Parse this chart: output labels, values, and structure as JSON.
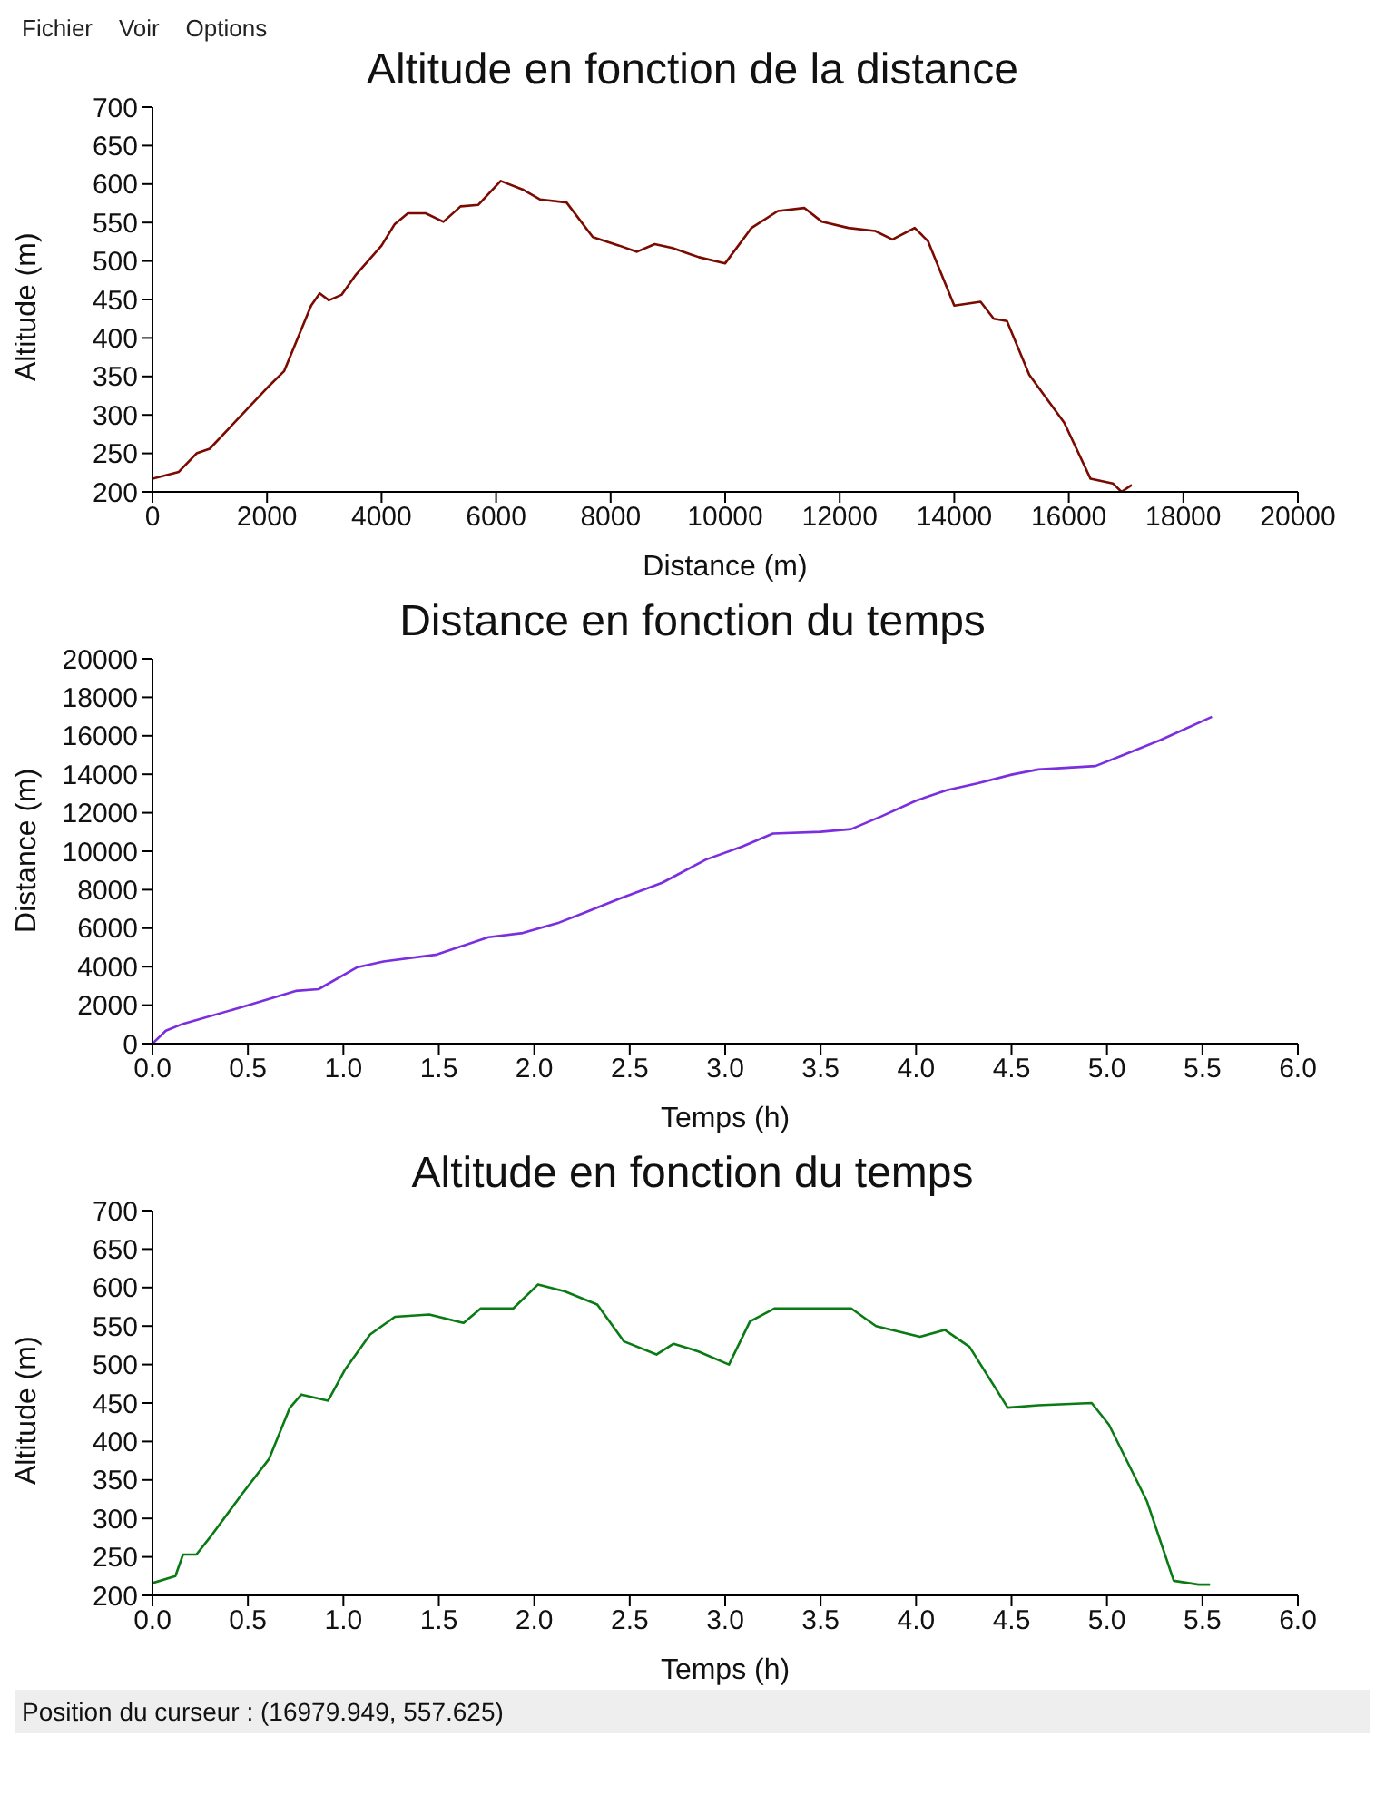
{
  "chart_data": [
    {
      "type": "line",
      "title": "Altitude en fonction de la distance",
      "xlabel": "Distance (m)",
      "ylabel": "Altitude (m)",
      "annotations": [
        "Fichier    Voir    Options"
      ],
      "color": "#7b0a00",
      "xlim": [
        0,
        20000
      ],
      "ylim": [
        200,
        700
      ],
      "xticks": [
        0,
        2000,
        4000,
        6000,
        8000,
        10000,
        12000,
        14000,
        16000,
        18000,
        20000
      ],
      "yticks": [
        200,
        250,
        300,
        350,
        400,
        450,
        500,
        550,
        600,
        650,
        700
      ],
      "x": [
        0,
        460,
        770,
        1000,
        2000,
        2300,
        2770,
        2920,
        3080,
        3300,
        3540,
        4000,
        4230,
        4460,
        4770,
        5080,
        5380,
        5690,
        6080,
        6460,
        6770,
        7230,
        7690,
        8150,
        8460,
        8770,
        9080,
        9540,
        10000,
        10460,
        10920,
        11380,
        11690,
        12150,
        12620,
        12920,
        13310,
        13540,
        14000,
        14460,
        14690,
        14920,
        15310,
        15920,
        16380,
        16770,
        16920,
        17100
      ],
      "values": [
        217,
        226,
        250,
        256,
        335,
        357,
        442,
        458,
        449,
        456,
        481,
        520,
        548,
        562,
        562,
        551,
        571,
        573,
        604,
        593,
        580,
        576,
        531,
        520,
        512,
        522,
        517,
        505,
        497,
        543,
        565,
        569,
        551,
        543,
        539,
        528,
        543,
        526,
        442,
        447,
        425,
        422,
        352,
        290,
        217,
        211,
        200,
        209
      ]
    },
    {
      "type": "line",
      "title": "Distance en fonction du temps",
      "xlabel": "Temps (h)",
      "ylabel": "Distance (m)",
      "color": "#7b2ee0",
      "xlim": [
        0,
        6
      ],
      "ylim": [
        0,
        20000
      ],
      "xticks": [
        {
          "value": 0,
          "label": "0.0"
        },
        0.5,
        {
          "value": 1,
          "label": "1.0"
        },
        1.5,
        {
          "value": 2,
          "label": "2.0"
        },
        2.5,
        {
          "value": 3,
          "label": "3.0"
        },
        3.5,
        {
          "value": 4,
          "label": "4.0"
        },
        4.5,
        {
          "value": 5,
          "label": "5.0"
        },
        5.5,
        {
          "value": 6,
          "label": "6.0"
        }
      ],
      "yticks": [
        0,
        2000,
        4000,
        6000,
        8000,
        10000,
        12000,
        14000,
        16000,
        18000,
        20000
      ],
      "x": [
        0,
        0.07,
        0.16,
        0.48,
        0.75,
        0.87,
        1.07,
        1.21,
        1.49,
        1.76,
        1.94,
        2.13,
        2.26,
        2.45,
        2.67,
        2.9,
        3.09,
        3.25,
        3.5,
        3.66,
        3.82,
        4.0,
        4.16,
        4.32,
        4.5,
        4.64,
        4.94,
        5.1,
        5.28,
        5.55
      ],
      "values": [
        0,
        670,
        1030,
        1930,
        2740,
        2830,
        3960,
        4270,
        4630,
        5530,
        5750,
        6290,
        6790,
        7550,
        8360,
        9570,
        10250,
        10920,
        11010,
        11150,
        11820,
        12630,
        13170,
        13530,
        13980,
        14250,
        14430,
        15060,
        15780,
        16990
      ]
    },
    {
      "type": "line",
      "title": "Altitude en fonction du temps",
      "xlabel": "Temps (h)",
      "ylabel": "Altitude (m)",
      "annotations": [
        "Position du curseur : (16979.949, 557.625)"
      ],
      "color": "#0a7a14",
      "xlim": [
        0,
        6
      ],
      "ylim": [
        200,
        700
      ],
      "xticks": [
        {
          "value": 0,
          "label": "0.0"
        },
        0.5,
        {
          "value": 1,
          "label": "1.0"
        },
        1.5,
        {
          "value": 2,
          "label": "2.0"
        },
        2.5,
        {
          "value": 3,
          "label": "3.0"
        },
        3.5,
        {
          "value": 4,
          "label": "4.0"
        },
        4.5,
        {
          "value": 5,
          "label": "5.0"
        },
        5.5,
        {
          "value": 6,
          "label": "6.0"
        }
      ],
      "yticks": [
        200,
        250,
        300,
        350,
        400,
        450,
        500,
        550,
        600,
        650,
        700
      ],
      "x": [
        0,
        0.12,
        0.16,
        0.23,
        0.3,
        0.47,
        0.61,
        0.72,
        0.78,
        0.92,
        1.01,
        1.14,
        1.27,
        1.45,
        1.63,
        1.72,
        1.89,
        2.02,
        2.16,
        2.33,
        2.47,
        2.64,
        2.73,
        2.86,
        3.02,
        3.13,
        3.26,
        3.66,
        3.79,
        4.02,
        4.15,
        4.28,
        4.48,
        4.64,
        4.92,
        5.01,
        5.21,
        5.35,
        5.48,
        5.54
      ],
      "values": [
        216,
        225,
        253,
        253,
        275,
        332,
        377,
        444,
        461,
        453,
        494,
        539,
        562,
        565,
        554,
        573,
        573,
        604,
        595,
        578,
        530,
        513,
        527,
        517,
        500,
        556,
        573,
        573,
        550,
        536,
        545,
        523,
        444,
        447,
        450,
        422,
        322,
        219,
        214,
        214
      ]
    }
  ]
}
